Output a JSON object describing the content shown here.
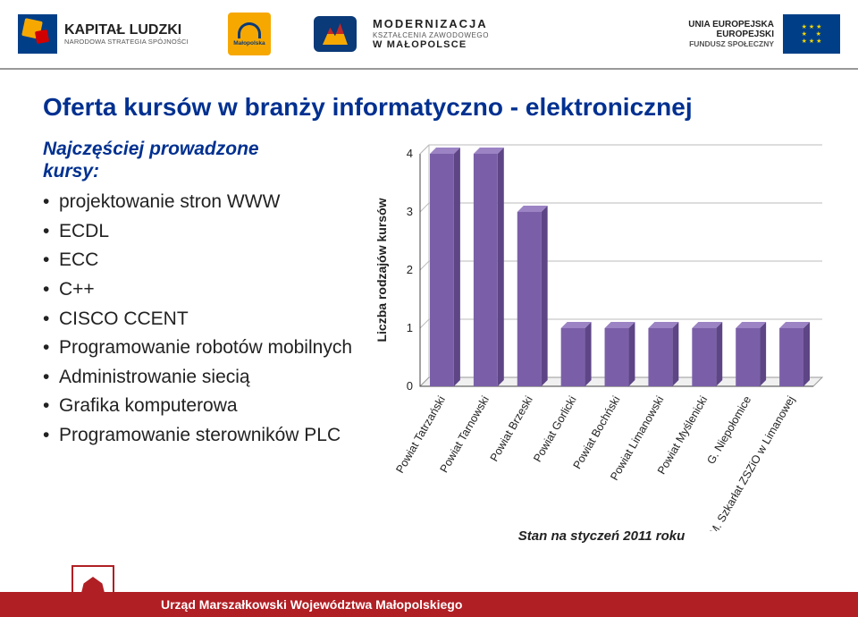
{
  "header": {
    "kl_big": "KAPITAŁ LUDZKI",
    "kl_small": "NARODOWA STRATEGIA SPÓJNOŚCI",
    "mp_small": "Małopolska",
    "mod_l1": "MODERNIZACJA",
    "mod_l2": "KSZTAŁCENIA ZAWODOWEGO",
    "mod_l3": "W MAŁOPOLSCE",
    "eu_l1": "UNIA EUROPEJSKA",
    "eu_l2": "EUROPEJSKI",
    "eu_l3": "FUNDUSZ SPOŁECZNY"
  },
  "title": "Oferta kursów w branży informatyczno - elektronicznej",
  "subheading_l1": "Najczęściej prowadzone",
  "subheading_l2": "kursy:",
  "bullets": [
    "projektowanie stron WWW",
    "ECDL",
    "ECC",
    "C++",
    "CISCO CCENT",
    "Programowanie robotów mobilnych",
    "Administrowanie siecią",
    "Grafika komputerowa",
    "Programowanie sterowników PLC"
  ],
  "chart": {
    "type": "bar-3d",
    "ylabel": "Liczba rodzajów kursów",
    "ylim": [
      0,
      4
    ],
    "ytick_step": 1,
    "categories": [
      "Powiat Tatrzański",
      "Powiat Tarnowski",
      "Powiat Brzeski",
      "Powiat Gorlicki",
      "Powiat Bochński",
      "Powiat Limanowski",
      "Powiat Myślenicki",
      "G. Niepołomice",
      "M. Szkarłat ZSZiO w Limanowej"
    ],
    "values": [
      4,
      4,
      3,
      1,
      1,
      1,
      1,
      1,
      1
    ],
    "bar_color_front": "#7a5fa8",
    "bar_color_top": "#9b83c4",
    "bar_color_side": "#5d4586",
    "floor_color": "#f0f0f0",
    "floor_border": "#999999",
    "grid_color": "#bbbbbb",
    "axis_color": "#444444",
    "background": "#ffffff",
    "bar_width_ratio": 0.55,
    "depth": 10
  },
  "caption": "Stan na styczeń 2011 roku",
  "footer": "Urząd Marszałkowski Województwa Małopolskiego"
}
